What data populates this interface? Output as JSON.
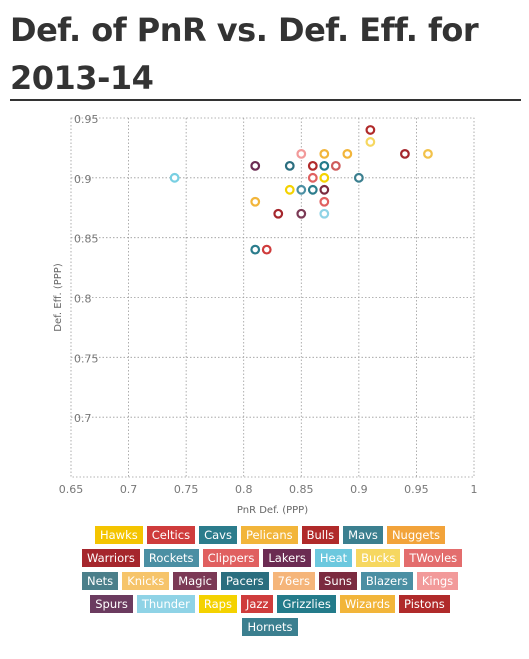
{
  "title": "Def. of PnR vs. Def. Eff. for 2013-14",
  "chart_data": {
    "type": "scatter",
    "title": "Def. of PnR vs. Def. Eff. for 2013-14",
    "xlabel": "PnR Def. (PPP)",
    "ylabel": "Def. Eff. (PPP)",
    "xlim": [
      0.65,
      1
    ],
    "ylim": [
      0.65,
      0.95
    ],
    "xticks": [
      0.65,
      0.7,
      0.75,
      0.8,
      0.85,
      0.9,
      0.95,
      1
    ],
    "yticks": [
      0.7,
      0.75,
      0.8,
      0.85,
      0.9,
      0.95
    ],
    "xtick_labels": [
      "0.65",
      "0.7",
      "0.75",
      "0.8",
      "0.85",
      "0.9",
      "0.95",
      "1"
    ],
    "ytick_labels": [
      "0.7",
      "0.75",
      "0.8",
      "0.85",
      "0.9",
      "0.95"
    ],
    "grid": true,
    "legend_placement": "bottom",
    "points": [
      {
        "x": 0.74,
        "y": 0.9,
        "color": "#78cfe2"
      },
      {
        "x": 0.81,
        "y": 0.91,
        "color": "#6b2b52"
      },
      {
        "x": 0.81,
        "y": 0.88,
        "color": "#f2b53a"
      },
      {
        "x": 0.81,
        "y": 0.84,
        "color": "#2b7c8c"
      },
      {
        "x": 0.82,
        "y": 0.84,
        "color": "#cf3c3c"
      },
      {
        "x": 0.83,
        "y": 0.87,
        "color": "#a5262c"
      },
      {
        "x": 0.84,
        "y": 0.91,
        "color": "#2b6e7f"
      },
      {
        "x": 0.84,
        "y": 0.89,
        "color": "#f4d200"
      },
      {
        "x": 0.85,
        "y": 0.92,
        "color": "#f29a9a"
      },
      {
        "x": 0.85,
        "y": 0.89,
        "color": "#4b8fa3"
      },
      {
        "x": 0.85,
        "y": 0.87,
        "color": "#7b3955"
      },
      {
        "x": 0.86,
        "y": 0.91,
        "color": "#b02a2a"
      },
      {
        "x": 0.86,
        "y": 0.9,
        "color": "#e06060"
      },
      {
        "x": 0.86,
        "y": 0.89,
        "color": "#2b7c8c"
      },
      {
        "x": 0.87,
        "y": 0.92,
        "color": "#f2b53a"
      },
      {
        "x": 0.87,
        "y": 0.91,
        "color": "#237b8a"
      },
      {
        "x": 0.87,
        "y": 0.9,
        "color": "#f4d200"
      },
      {
        "x": 0.87,
        "y": 0.89,
        "color": "#7b2b3f"
      },
      {
        "x": 0.87,
        "y": 0.88,
        "color": "#e06060"
      },
      {
        "x": 0.87,
        "y": 0.87,
        "color": "#8fd3e6"
      },
      {
        "x": 0.88,
        "y": 0.91,
        "color": "#cf5c5c"
      },
      {
        "x": 0.89,
        "y": 0.92,
        "color": "#f2b53a"
      },
      {
        "x": 0.9,
        "y": 0.9,
        "color": "#3b7f8f"
      },
      {
        "x": 0.91,
        "y": 0.94,
        "color": "#b02a2a"
      },
      {
        "x": 0.91,
        "y": 0.93,
        "color": "#f6d760"
      },
      {
        "x": 0.94,
        "y": 0.92,
        "color": "#a5262c"
      },
      {
        "x": 0.96,
        "y": 0.92,
        "color": "#f2c24a"
      }
    ]
  },
  "legend": {
    "rows": [
      [
        {
          "label": "Hawks",
          "color": "#f4c400"
        },
        {
          "label": "Celtics",
          "color": "#cf3c3c"
        },
        {
          "label": "Cavs",
          "color": "#2b7c8c"
        },
        {
          "label": "Pelicans",
          "color": "#f2b53a"
        },
        {
          "label": "Bulls",
          "color": "#b02a2a"
        },
        {
          "label": "Mavs",
          "color": "#3b7f8f"
        },
        {
          "label": "Nuggets",
          "color": "#f2a33a"
        }
      ],
      [
        {
          "label": "Warriors",
          "color": "#a5262c"
        },
        {
          "label": "Rockets",
          "color": "#4b8fa3"
        },
        {
          "label": "Clippers",
          "color": "#e06060"
        },
        {
          "label": "Lakers",
          "color": "#6b2b52"
        },
        {
          "label": "Heat",
          "color": "#6cc8de"
        },
        {
          "label": "Bucks",
          "color": "#f6d760"
        },
        {
          "label": "TWovles",
          "color": "#e36d6d"
        }
      ],
      [
        {
          "label": "Nets",
          "color": "#4b7f8a"
        },
        {
          "label": "Knicks",
          "color": "#f6c46a"
        },
        {
          "label": "Magic",
          "color": "#7b3955"
        },
        {
          "label": "Pacers",
          "color": "#2b6e7f"
        },
        {
          "label": "76ers",
          "color": "#f5b57a"
        },
        {
          "label": "Suns",
          "color": "#7b2b3f"
        },
        {
          "label": "Blazers",
          "color": "#4b8fa3"
        },
        {
          "label": "Kings",
          "color": "#f29a9a"
        }
      ],
      [
        {
          "label": "Spurs",
          "color": "#6b3b5f"
        },
        {
          "label": "Thunder",
          "color": "#8fd3e6"
        },
        {
          "label": "Raps",
          "color": "#f4d200"
        },
        {
          "label": "Jazz",
          "color": "#cf3c3c"
        },
        {
          "label": "Grizzlies",
          "color": "#237b8a"
        },
        {
          "label": "Wizards",
          "color": "#f2b53a"
        },
        {
          "label": "Pistons",
          "color": "#b02a2a"
        }
      ],
      [
        {
          "label": "Hornets",
          "color": "#3b7f8f"
        }
      ]
    ]
  }
}
